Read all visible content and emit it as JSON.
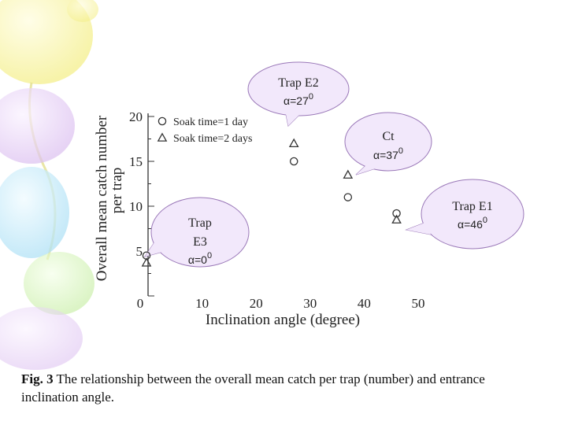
{
  "colors": {
    "balloon_yellow": "#f6f29a",
    "balloon_purple": "#e4c8f4",
    "balloon_blue": "#bde8f8",
    "balloon_green": "#d2f2b4",
    "callout_fill": "#f2e8fb",
    "callout_stroke": "#9a78b8",
    "marker": "#333333"
  },
  "chart_data": {
    "type": "scatter",
    "xlabel": "Inclination angle (degree)",
    "ylabel": "Overall mean catch number per trap",
    "xlim": [
      0,
      50
    ],
    "ylim": [
      0,
      20
    ],
    "x_ticks": [
      "0",
      "10",
      "20",
      "30",
      "40",
      "50"
    ],
    "y_ticks": [
      "5",
      "10",
      "15",
      "20"
    ],
    "legend_position": "top-left",
    "grid": false,
    "series": [
      {
        "name": "Soak time=1 day",
        "marker": "circle",
        "x": [
          0,
          27,
          37,
          46
        ],
        "y": [
          4.5,
          15,
          11,
          9.2
        ]
      },
      {
        "name": "Soak time=2 days",
        "marker": "triangle",
        "x": [
          0,
          27,
          37,
          46
        ],
        "y": [
          3.7,
          17,
          13.5,
          8.5
        ]
      }
    ],
    "annotations": [
      {
        "id": "e2",
        "lines": [
          "Trap E2"
        ],
        "alpha": "α=27",
        "sup": "0"
      },
      {
        "id": "ct",
        "lines": [
          "Ct"
        ],
        "alpha": "α=37",
        "sup": "0"
      },
      {
        "id": "e1",
        "lines": [
          "Trap E1"
        ],
        "alpha": "α=46",
        "sup": "0"
      },
      {
        "id": "e3",
        "lines": [
          "Trap",
          "E3"
        ],
        "alpha": "α=0",
        "sup": "0"
      }
    ]
  },
  "caption": {
    "label": "Fig. 3",
    "text": " The relationship between the overall mean catch per trap (number) and entrance inclination angle."
  }
}
